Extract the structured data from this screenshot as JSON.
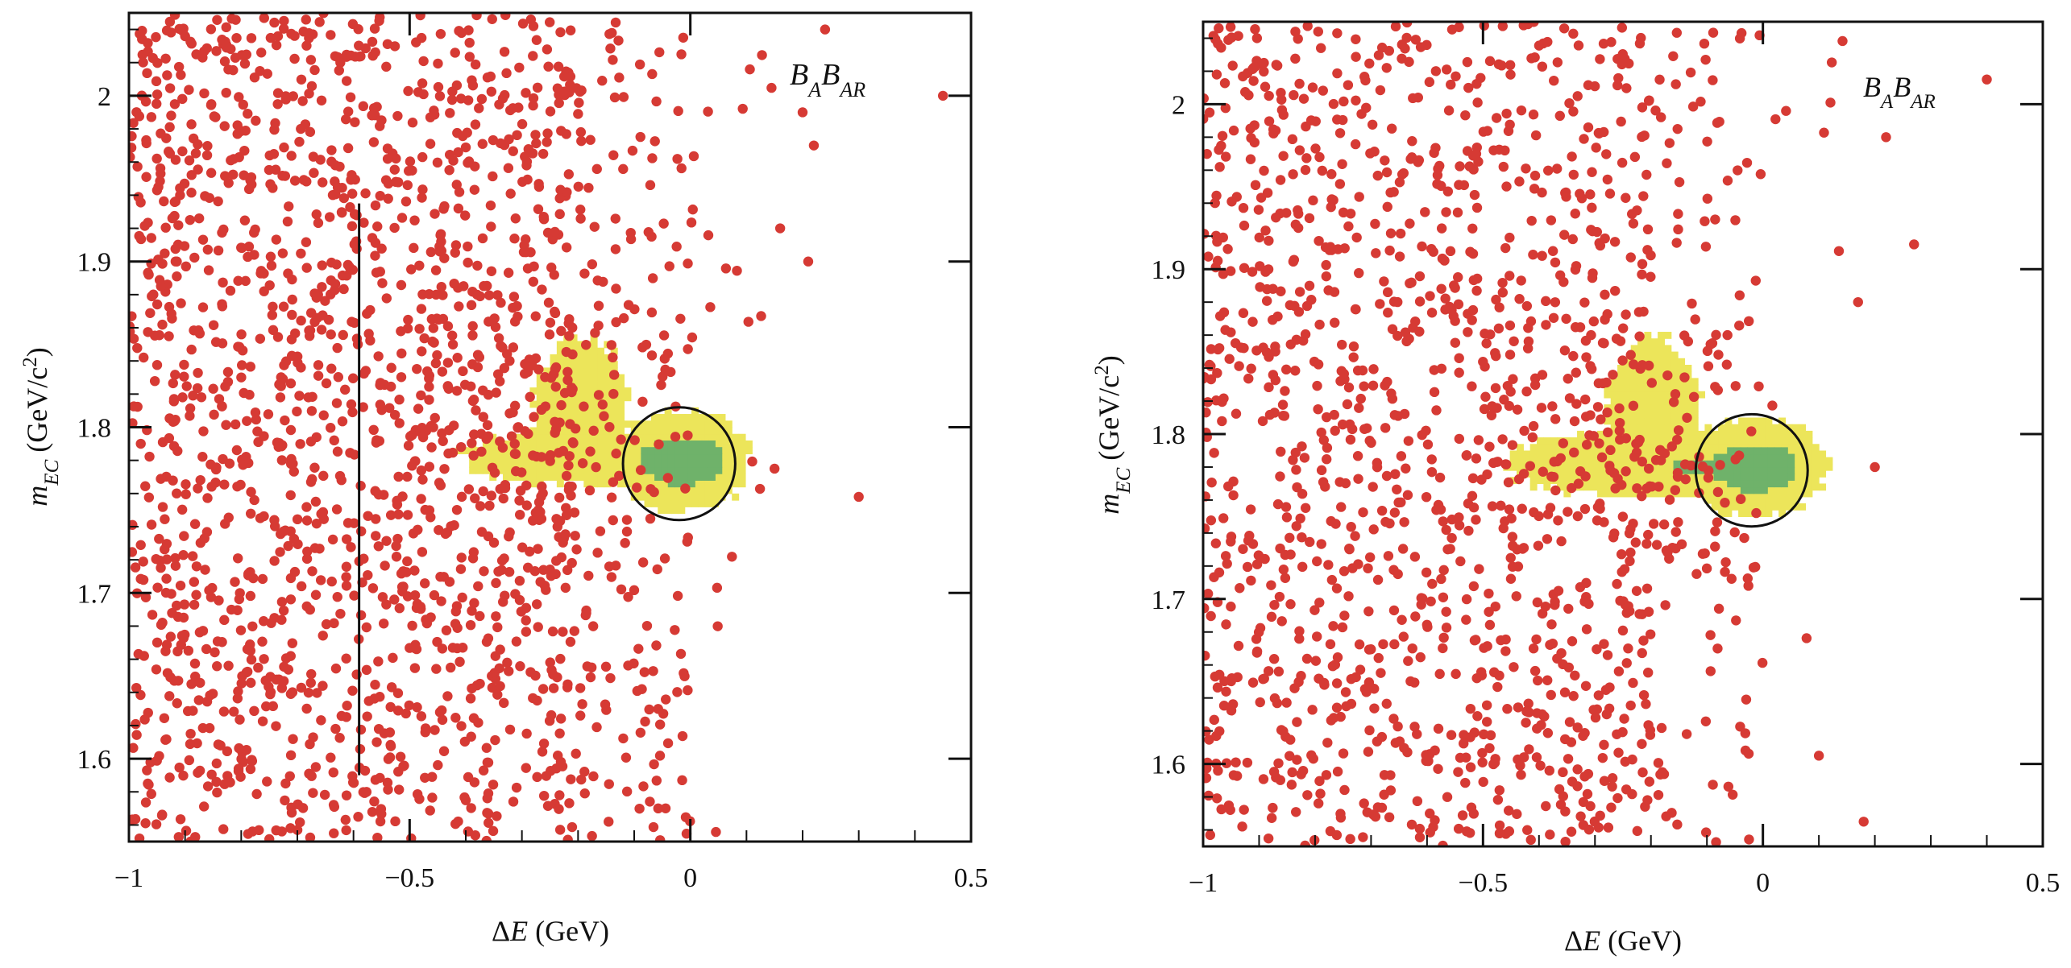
{
  "colors": {
    "points": "#d63a34",
    "yellow_region": "#ece55a",
    "green_region": "#6fb26a",
    "axis": "#111111"
  },
  "chart_data": [
    {
      "type": "scatter",
      "panel": "left",
      "annotation": "B_A B_AR",
      "annotation_main1": "B",
      "annotation_sub1": "A",
      "annotation_main2": "B",
      "annotation_sub2": "AR",
      "xlabel": "ΔE (GeV)",
      "xlabel_symbol": "Δ",
      "xlabel_var": "E",
      "xlabel_unit": " (GeV)",
      "ylabel": "m_EC (GeV/c^2)",
      "ylabel_var": "m",
      "ylabel_sub": "EC",
      "ylabel_unit_pre": " (GeV/c",
      "ylabel_sup": "2",
      "ylabel_unit_post": ")",
      "xlim": [
        -1,
        0.5
      ],
      "ylim": [
        1.55,
        2.05
      ],
      "xticks": [
        -1,
        -0.5,
        0,
        0.5
      ],
      "xtick_labels": [
        "−1",
        "−0.5",
        "0",
        "0.5"
      ],
      "yticks": [
        1.6,
        1.7,
        1.8,
        1.9,
        2.0
      ],
      "ytick_labels": [
        "1.6",
        "1.7",
        "1.8",
        "1.9",
        "2"
      ],
      "vertical_line_x": -0.59,
      "vertical_line_yrange": [
        1.59,
        1.935
      ],
      "ellipse": {
        "cx": -0.02,
        "cy": 1.778,
        "rx": 0.1,
        "ry": 0.034
      },
      "yellow_density_region": "ΔE from -0.42 to 0.1, mEC 1.75–1.85, concentrated near (0, 1.78)",
      "green_density_region": "ΔE from -0.1 to 0.05, mEC 1.765–1.79",
      "point_density": "dense for ΔE < -0.2, sparse for ΔE > 0",
      "n_points_approx": 1800,
      "outliers": [
        [
          0.45,
          2.0
        ],
        [
          0.3,
          1.758
        ],
        [
          0.15,
          1.775
        ],
        [
          0.24,
          2.04
        ],
        [
          0.22,
          1.97
        ],
        [
          0.2,
          1.99
        ],
        [
          0.21,
          1.9
        ],
        [
          0.16,
          1.92
        ]
      ]
    },
    {
      "type": "scatter",
      "panel": "right",
      "annotation": "B_A B_AR",
      "annotation_main1": "B",
      "annotation_sub1": "A",
      "annotation_main2": "B",
      "annotation_sub2": "AR",
      "xlabel": "ΔE (GeV)",
      "xlabel_symbol": "Δ",
      "xlabel_var": "E",
      "xlabel_unit": " (GeV)",
      "ylabel": "m_EC (GeV/c^2)",
      "ylabel_var": "m",
      "ylabel_sub": "EC",
      "ylabel_unit_pre": " (GeV/c",
      "ylabel_sup": "2",
      "ylabel_unit_post": ")",
      "xlim": [
        -1,
        0.5
      ],
      "ylim": [
        1.55,
        2.05
      ],
      "xticks": [
        -1,
        -0.5,
        0,
        0.5
      ],
      "xtick_labels": [
        "−1",
        "−0.5",
        "0",
        "0.5"
      ],
      "yticks": [
        1.6,
        1.7,
        1.8,
        1.9,
        2.0
      ],
      "ytick_labels": [
        "1.6",
        "1.7",
        "1.8",
        "1.9",
        "2"
      ],
      "ellipse": {
        "cx": -0.02,
        "cy": 1.778,
        "rx": 0.1,
        "ry": 0.034
      },
      "yellow_density_region": "ΔE from -0.5 to 0.1, mEC 1.74–1.86, concentrated near (0, 1.78)",
      "green_density_region": "ΔE from -0.15 to 0.05, mEC 1.765–1.79",
      "point_density": "moderate for ΔE < -0.2, sparse for ΔE > 0",
      "n_points_approx": 1400,
      "outliers": [
        [
          0.4,
          2.015
        ],
        [
          0.27,
          1.915
        ],
        [
          0.2,
          1.78
        ],
        [
          0.18,
          1.565
        ],
        [
          0.1,
          1.605
        ],
        [
          0.17,
          1.88
        ],
        [
          0.22,
          1.98
        ]
      ]
    }
  ]
}
